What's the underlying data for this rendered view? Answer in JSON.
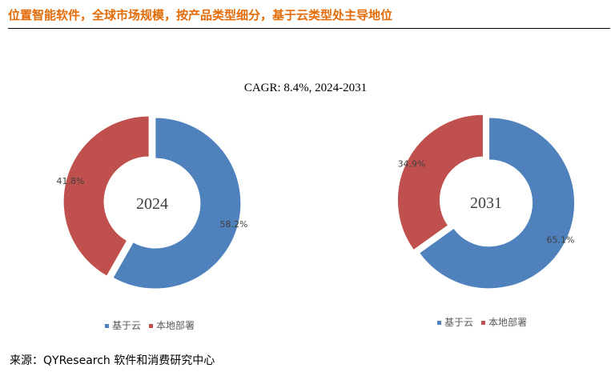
{
  "header": {
    "title": "位置智能软件，全球市场规模，按产品类型细分，基于云类型处主导地位"
  },
  "subtitle": "CAGR:   8.4%, 2024-2031",
  "colors": {
    "cloud": "#4f81bd",
    "onprem": "#c0504d"
  },
  "chart_data": [
    {
      "type": "pie",
      "title": "2024",
      "categories": [
        "基于云",
        "本地部署"
      ],
      "values": [
        58.2,
        41.8
      ],
      "data_labels": [
        "58.2%",
        "41.8%"
      ],
      "legend": [
        "基于云",
        "本地部署"
      ],
      "legend_position": "bottom"
    },
    {
      "type": "pie",
      "title": "2031",
      "categories": [
        "基于云",
        "本地部署"
      ],
      "values": [
        65.1,
        34.9
      ],
      "data_labels": [
        "65.1%",
        "34.9%"
      ],
      "legend": [
        "基于云",
        "本地部署"
      ],
      "legend_position": "bottom"
    }
  ],
  "source": "来源：QYResearch 软件和消费研究中心"
}
